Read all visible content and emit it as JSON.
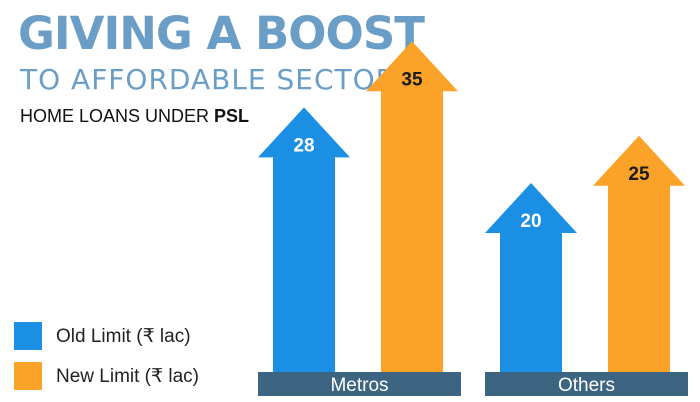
{
  "header": {
    "title": "GIVING A BOOST",
    "subtitle": "TO AFFORDABLE SECTOR",
    "line3_prefix": "HOME LOANS UNDER ",
    "line3_bold": "PSL"
  },
  "colors": {
    "title": "#6b9ec6",
    "old": "#1a8fe3",
    "new": "#fba229",
    "category_bar": "#3d6480"
  },
  "chart_data": {
    "type": "bar",
    "categories": [
      "Metros",
      "Others"
    ],
    "series": [
      {
        "name": "Old Limit (₹ lac)",
        "values": [
          28,
          20
        ]
      },
      {
        "name": "New Limit (₹ lac)",
        "values": [
          35,
          25
        ]
      }
    ],
    "ylabel": "",
    "xlabel": "",
    "legend": "bottom-left"
  }
}
